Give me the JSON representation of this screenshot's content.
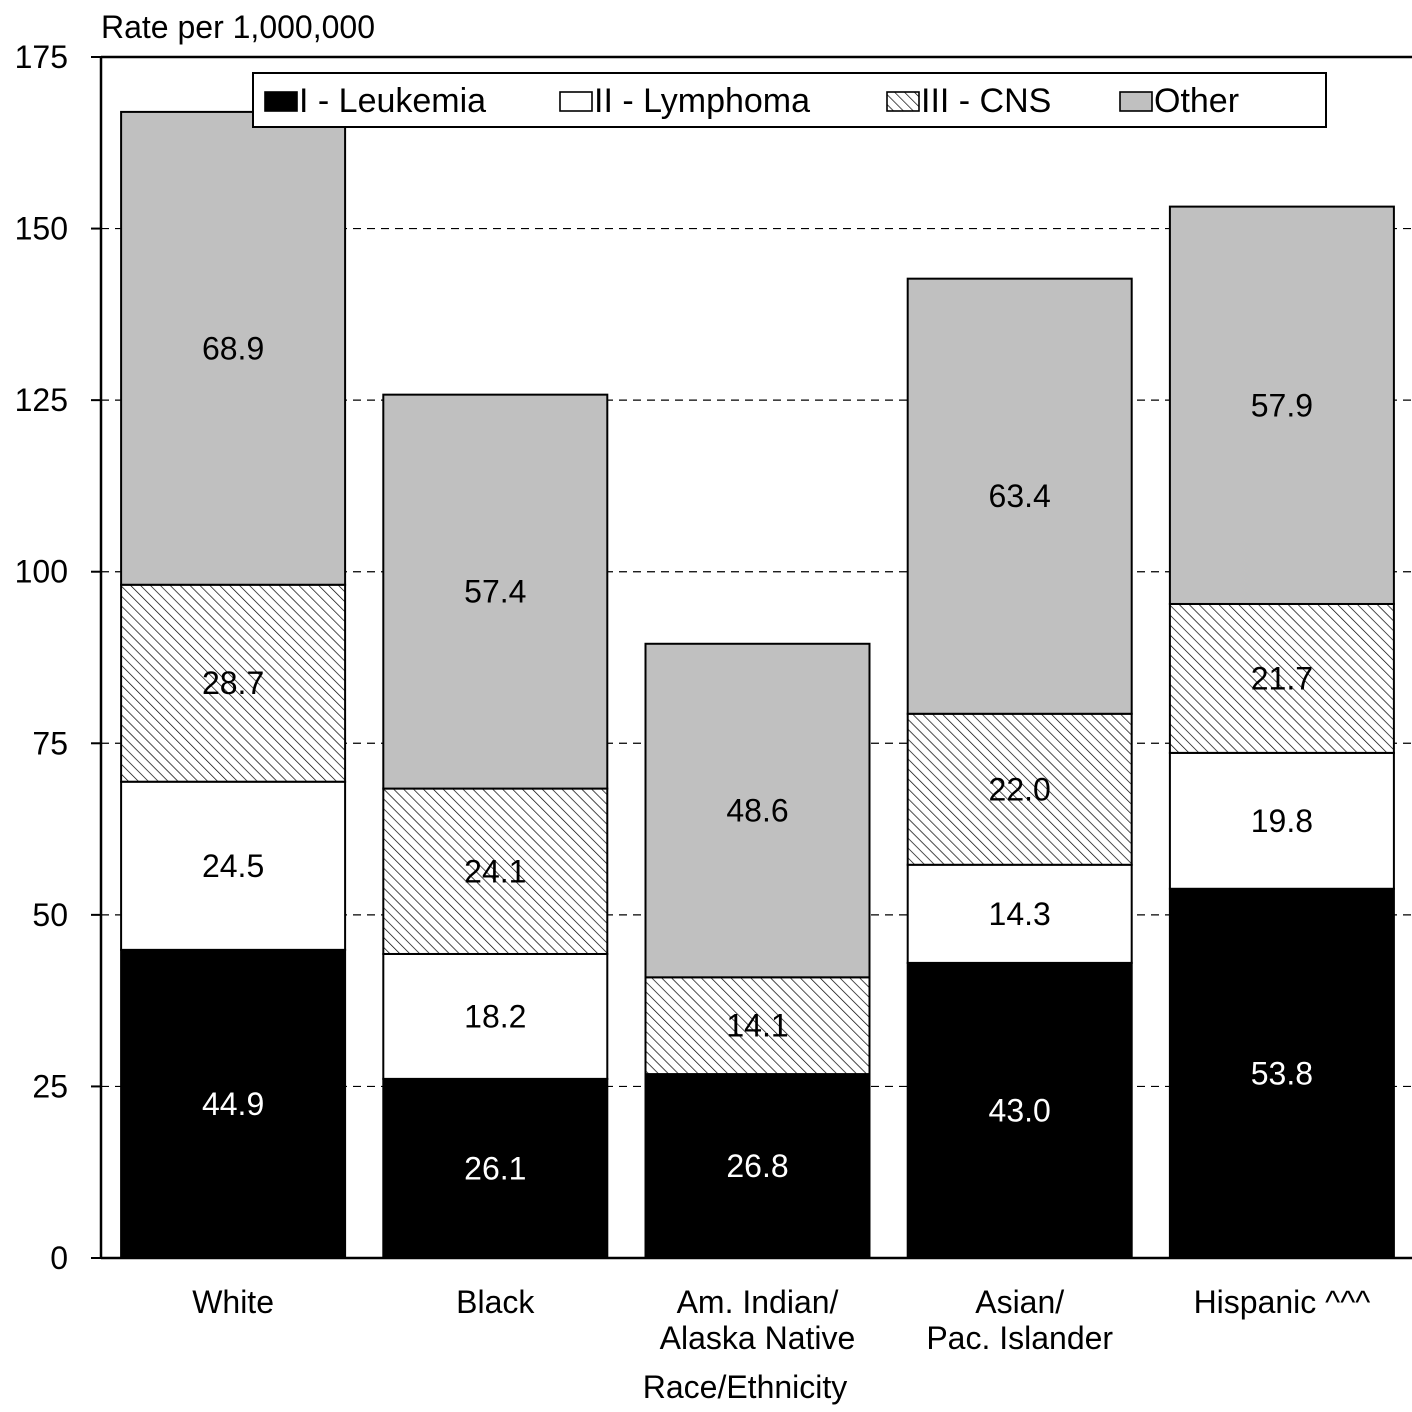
{
  "chart_data": {
    "type": "bar",
    "stacked": true,
    "title": "",
    "ylabel": "Rate per 1,000,000",
    "xlabel": "Race/Ethnicity",
    "ylim": [
      0,
      175
    ],
    "yticks": [
      0,
      25,
      50,
      75,
      100,
      125,
      150,
      175
    ],
    "grid": "horizontal-dashed",
    "legend_position": "top",
    "categories": [
      [
        "White"
      ],
      [
        "Black"
      ],
      [
        "Am. Indian/",
        "Alaska Native"
      ],
      [
        "Asian/",
        "Pac. Islander"
      ],
      [
        "Hispanic ^^^"
      ]
    ],
    "series": [
      {
        "name": "I - Leukemia",
        "fill": "#000000",
        "label_color": "#ffffff",
        "pattern": "solid",
        "values": [
          44.9,
          26.1,
          26.8,
          43.0,
          53.8
        ],
        "labels": [
          "44.9",
          "26.1",
          "26.8",
          "43.0",
          "53.8"
        ]
      },
      {
        "name": "II - Lymphoma",
        "fill": "#ffffff",
        "label_color": "#000000",
        "pattern": "solid",
        "values": [
          24.5,
          18.2,
          null,
          14.3,
          19.8
        ],
        "labels": [
          "24.5",
          "18.2",
          "",
          "14.3",
          "19.8"
        ]
      },
      {
        "name": "III - CNS",
        "fill": "#ffffff",
        "label_color": "#000000",
        "pattern": "hatch",
        "values": [
          28.7,
          24.1,
          14.1,
          22.0,
          21.7
        ],
        "labels": [
          "28.7",
          "24.1",
          "14.1",
          "22.0",
          "21.7"
        ]
      },
      {
        "name": "Other",
        "fill": "#c0c0c0",
        "label_color": "#000000",
        "pattern": "solid",
        "values": [
          68.9,
          57.4,
          48.6,
          63.4,
          57.9
        ],
        "labels": [
          "68.9",
          "57.4",
          "48.6",
          "63.4",
          "57.9"
        ]
      }
    ]
  }
}
